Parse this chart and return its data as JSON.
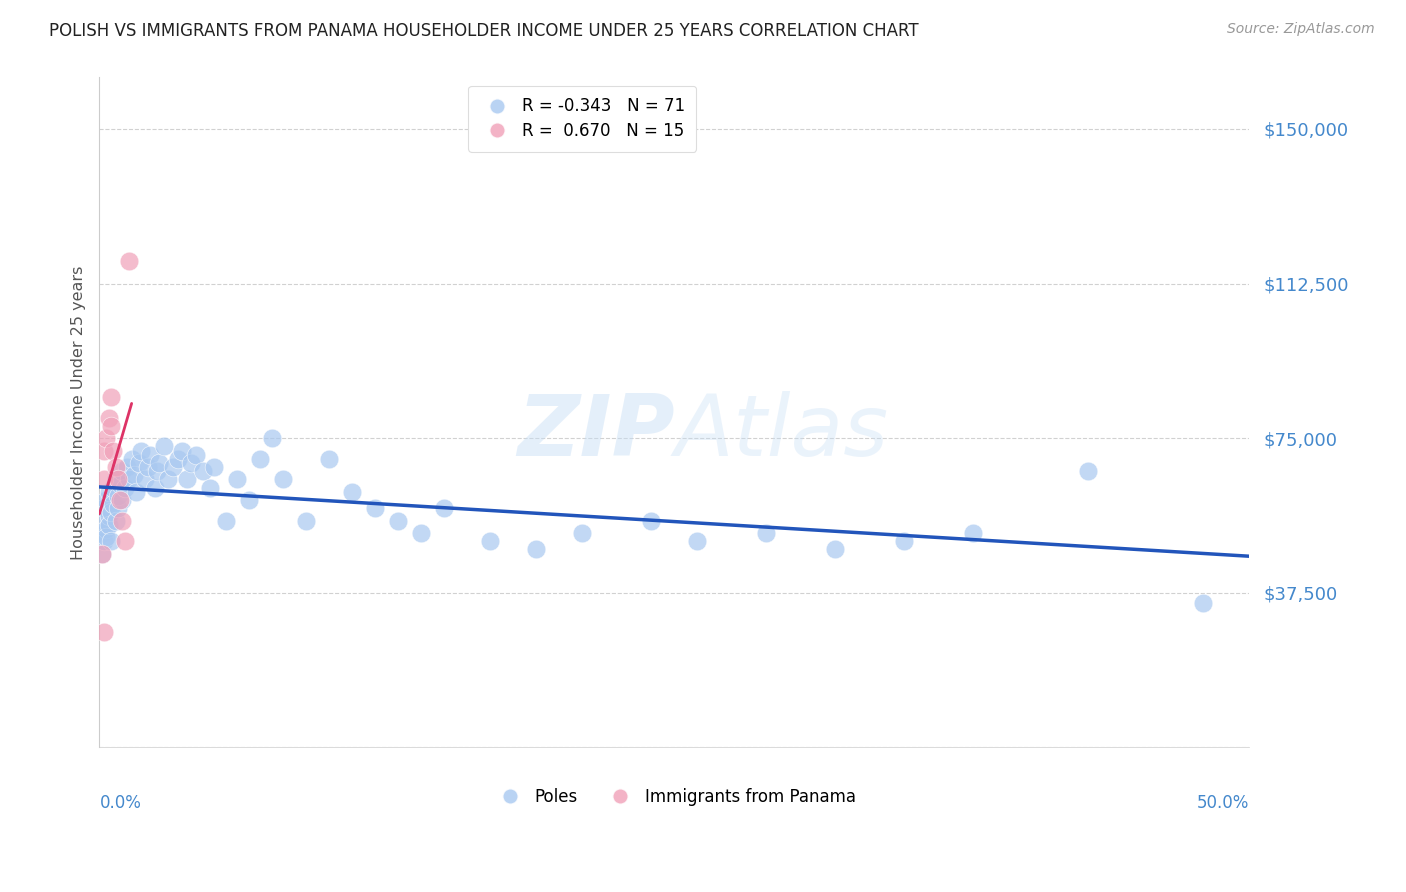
{
  "title": "POLISH VS IMMIGRANTS FROM PANAMA HOUSEHOLDER INCOME UNDER 25 YEARS CORRELATION CHART",
  "source": "Source: ZipAtlas.com",
  "ylabel": "Householder Income Under 25 years",
  "watermark": "ZIPAtlas",
  "ylim": [
    0,
    162500
  ],
  "xlim": [
    0.0,
    0.5
  ],
  "yticks": [
    0,
    37500,
    75000,
    112500,
    150000
  ],
  "background_color": "#ffffff",
  "grid_color": "#cccccc",
  "blue_color": "#a8c8f0",
  "pink_color": "#f0a0b8",
  "line_blue": "#2255bb",
  "line_pink": "#dd3366",
  "legend_blue_R": "-0.343",
  "legend_blue_N": "71",
  "legend_pink_R": "0.670",
  "legend_pink_N": "15",
  "poles_label": "Poles",
  "panama_label": "Immigrants from Panama",
  "axis_label_color": "#4488cc",
  "poles_x": [
    0.001,
    0.001,
    0.002,
    0.002,
    0.002,
    0.003,
    0.003,
    0.003,
    0.004,
    0.004,
    0.004,
    0.005,
    0.005,
    0.006,
    0.006,
    0.007,
    0.007,
    0.008,
    0.008,
    0.009,
    0.01,
    0.01,
    0.011,
    0.012,
    0.013,
    0.014,
    0.015,
    0.016,
    0.017,
    0.018,
    0.02,
    0.021,
    0.022,
    0.024,
    0.025,
    0.026,
    0.028,
    0.03,
    0.032,
    0.034,
    0.036,
    0.038,
    0.04,
    0.042,
    0.045,
    0.048,
    0.05,
    0.055,
    0.06,
    0.065,
    0.07,
    0.075,
    0.08,
    0.09,
    0.1,
    0.11,
    0.12,
    0.13,
    0.14,
    0.15,
    0.17,
    0.19,
    0.21,
    0.24,
    0.26,
    0.29,
    0.32,
    0.35,
    0.38,
    0.43,
    0.48
  ],
  "poles_y": [
    52000,
    47000,
    55000,
    50000,
    58000,
    53000,
    51000,
    60000,
    56000,
    54000,
    62000,
    50000,
    57000,
    59000,
    63000,
    55000,
    65000,
    58000,
    61000,
    64000,
    67000,
    60000,
    63000,
    68000,
    65000,
    70000,
    66000,
    62000,
    69000,
    72000,
    65000,
    68000,
    71000,
    63000,
    67000,
    69000,
    73000,
    65000,
    68000,
    70000,
    72000,
    65000,
    69000,
    71000,
    67000,
    63000,
    68000,
    55000,
    65000,
    60000,
    70000,
    75000,
    65000,
    55000,
    70000,
    62000,
    58000,
    55000,
    52000,
    58000,
    50000,
    48000,
    52000,
    55000,
    50000,
    52000,
    48000,
    50000,
    52000,
    67000,
    35000
  ],
  "panama_x": [
    0.001,
    0.002,
    0.002,
    0.003,
    0.004,
    0.005,
    0.005,
    0.006,
    0.007,
    0.008,
    0.009,
    0.01,
    0.011,
    0.013,
    0.002
  ],
  "panama_y": [
    47000,
    65000,
    72000,
    75000,
    80000,
    85000,
    78000,
    72000,
    68000,
    65000,
    60000,
    55000,
    50000,
    118000,
    28000
  ],
  "blue_intercept": 62000,
  "blue_slope": -28000,
  "pink_intercept": 42000,
  "pink_slope": 4500000
}
